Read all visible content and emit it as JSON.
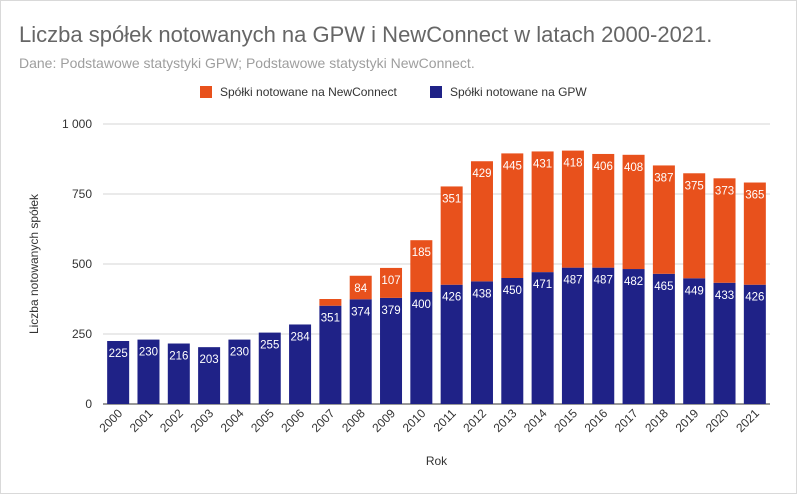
{
  "title": "Liczba spółek notowanych na GPW i NewConnect w latach 2000-2021.",
  "subtitle": "Dane: Podstawowe statystyki GPW; Podstawowe statystyki NewConnect.",
  "colors": {
    "gpw": "#1f2287",
    "newconnect": "#e8511c",
    "grid": "#d5d5d5",
    "axis_text": "#333333"
  },
  "chart_data": {
    "type": "bar",
    "stacked": true,
    "title": "Liczba spółek notowanych na GPW i NewConnect w latach 2000-2021.",
    "subtitle": "Dane: Podstawowe statystyki GPW; Podstawowe statystyki NewConnect.",
    "xlabel": "Rok",
    "ylabel": "Liczba notowanych spółek",
    "ylim": [
      0,
      1000
    ],
    "yticks": [
      0,
      250,
      500,
      750,
      1000
    ],
    "ytick_labels": [
      "0",
      "250",
      "500",
      "750",
      "1 000"
    ],
    "grid": true,
    "legend_position": "top",
    "categories": [
      "2000",
      "2001",
      "2002",
      "2003",
      "2004",
      "2005",
      "2006",
      "2007",
      "2008",
      "2009",
      "2010",
      "2011",
      "2012",
      "2013",
      "2014",
      "2015",
      "2016",
      "2017",
      "2018",
      "2019",
      "2020",
      "2021"
    ],
    "series": [
      {
        "name": "Spółki notowane na GPW",
        "color": "#1f2287",
        "values": [
          225,
          230,
          216,
          203,
          230,
          255,
          284,
          351,
          374,
          379,
          400,
          426,
          438,
          450,
          471,
          487,
          487,
          482,
          465,
          449,
          433,
          426
        ],
        "labels": [
          "225",
          "230",
          "216",
          "203",
          "230",
          "255",
          "284",
          "351",
          "374",
          "379",
          "400",
          "426",
          "438",
          "450",
          "471",
          "487",
          "487",
          "482",
          "465",
          "449",
          "433",
          "426"
        ]
      },
      {
        "name": "Spółki notowane na NewConnect",
        "color": "#e8511c",
        "values": [
          0,
          0,
          0,
          0,
          0,
          0,
          0,
          24,
          84,
          107,
          185,
          351,
          429,
          445,
          431,
          418,
          406,
          408,
          387,
          375,
          373,
          365
        ],
        "labels": [
          "",
          "",
          "",
          "",
          "",
          "",
          "",
          "",
          "84",
          "107",
          "185",
          "351",
          "429",
          "445",
          "431",
          "418",
          "406",
          "408",
          "387",
          "375",
          "373",
          "365"
        ]
      }
    ],
    "legend_order": [
      "Spółki notowane na NewConnect",
      "Spółki notowane na GPW"
    ]
  }
}
